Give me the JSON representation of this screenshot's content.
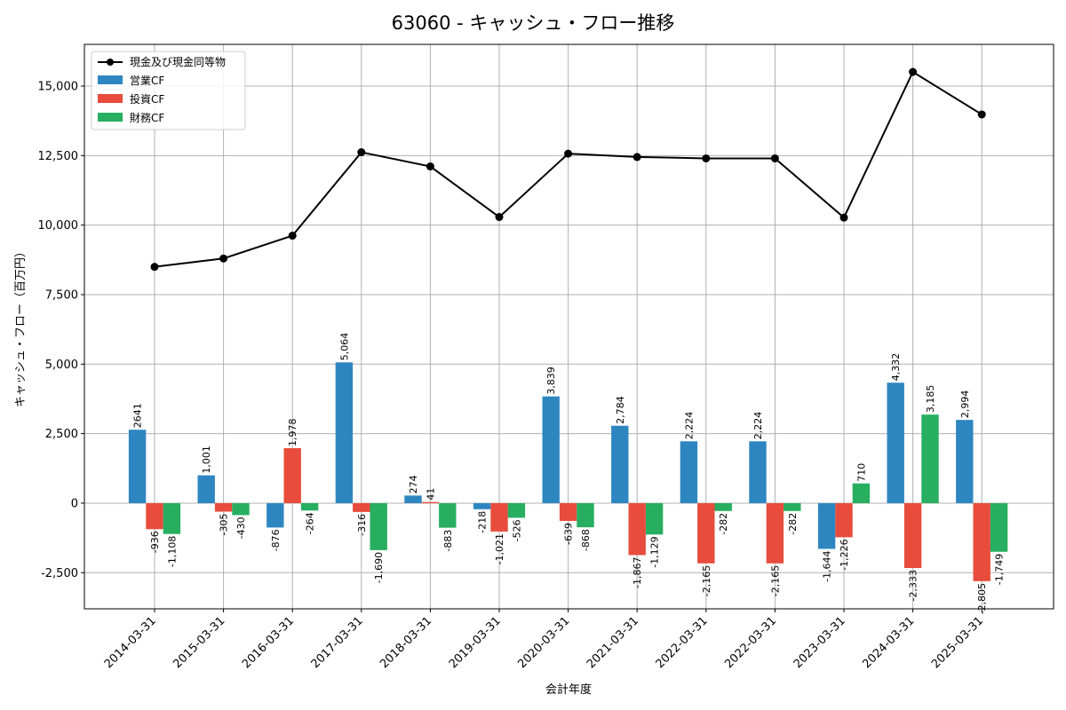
{
  "chart_data": {
    "type": "bar",
    "title": "63060 - キャッシュ・フロー推移",
    "xlabel": "会計年度",
    "ylabel": "キャッシュ・フロー（百万円）",
    "categories": [
      "2014-03-31",
      "2015-03-31",
      "2016-03-31",
      "2017-03-31",
      "2018-03-31",
      "2019-03-31",
      "2020-03-31",
      "2021-03-31",
      "2022-03-31",
      "2022-03-31",
      "2023-03-31",
      "2024-03-31",
      "2025-03-31"
    ],
    "ylim": [
      -3800,
      16500
    ],
    "yticks": [
      -2500,
      0,
      2500,
      5000,
      7500,
      10000,
      12500,
      15000
    ],
    "ytick_labels": [
      "-2,500",
      "0",
      "2,500",
      "5,000",
      "7,500",
      "10,000",
      "12,500",
      "15,000"
    ],
    "grid": true,
    "legend_position": "top-left",
    "series": [
      {
        "name": "営業CF",
        "kind": "bar",
        "color": "#2E86C1",
        "values": [
          2641,
          1001,
          -876,
          5064,
          274,
          -218,
          3839,
          2784,
          2224,
          2224,
          -1644,
          4332,
          2994
        ],
        "labels": [
          "2641",
          "1,001",
          "-876",
          "5,064",
          "274",
          "-218",
          "3,839",
          "2,784",
          "2,224",
          "2,224",
          "-1,644",
          "4,332",
          "2,994"
        ]
      },
      {
        "name": "投資CF",
        "kind": "bar",
        "color": "#E74C3C",
        "values": [
          -936,
          -305,
          1978,
          -316,
          41,
          -1021,
          -639,
          -1867,
          -2165,
          -2165,
          -1226,
          -2333,
          -2805
        ],
        "labels": [
          "-936",
          "-305",
          "1,978",
          "-316",
          "41",
          "-1,021",
          "-639",
          "-1,867",
          "-2,165",
          "-2,165",
          "-1,226",
          "-2,333",
          "-2,805"
        ]
      },
      {
        "name": "財務CF",
        "kind": "bar",
        "color": "#27AE60",
        "values": [
          -1108,
          -430,
          -264,
          -1690,
          -883,
          -526,
          -868,
          -1129,
          -282,
          -282,
          710,
          3185,
          -1749
        ],
        "labels": [
          "-1,108",
          "-430",
          "-264",
          "-1,690",
          "-883",
          "-526",
          "-868",
          "-1,129",
          "-282",
          "-282",
          "710",
          "3,185",
          "-1,749"
        ]
      },
      {
        "name": "現金及び現金同等物",
        "kind": "line",
        "color": "#000000",
        "values": [
          8500,
          8800,
          9620,
          12620,
          12110,
          10290,
          12570,
          12450,
          12400,
          12400,
          10270,
          15510,
          13980
        ]
      }
    ]
  }
}
